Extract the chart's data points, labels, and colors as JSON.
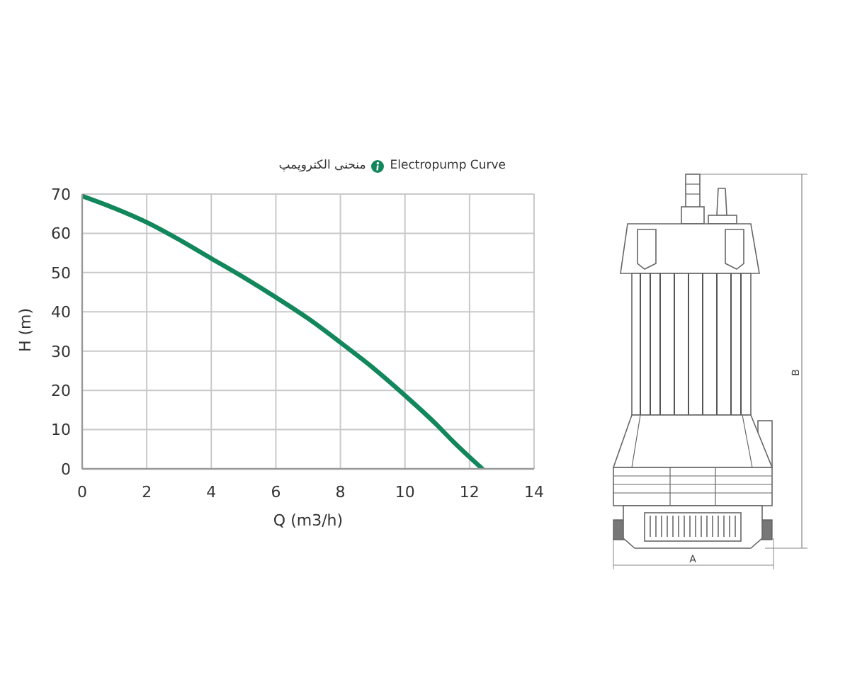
{
  "chart_data": {
    "type": "line",
    "title": "Electropump Curve",
    "subtitle": "منحنی الکتروپمپ",
    "xlabel": "Q (m3/h)",
    "ylabel": "H (m)",
    "x": [
      0,
      1,
      2,
      3,
      4,
      5,
      6,
      7,
      8,
      9,
      10,
      11,
      11.5,
      12.4
    ],
    "series": [
      {
        "color": "#12875c",
        "values": [
          69.5,
          66.4,
          62.8,
          58.4,
          53.6,
          48.8,
          43.7,
          38.3,
          32.2,
          25.8,
          18.7,
          11.1,
          6.9,
          0
        ]
      }
    ],
    "xlim": [
      0,
      14
    ],
    "xticks": [
      0,
      2,
      4,
      6,
      8,
      10,
      12,
      14
    ],
    "ylim": [
      0,
      70
    ],
    "yticks": [
      0,
      10,
      20,
      30,
      40,
      50,
      60,
      70
    ],
    "grid": true,
    "line_style": "solid",
    "annotations": [
      "A",
      "B"
    ]
  }
}
